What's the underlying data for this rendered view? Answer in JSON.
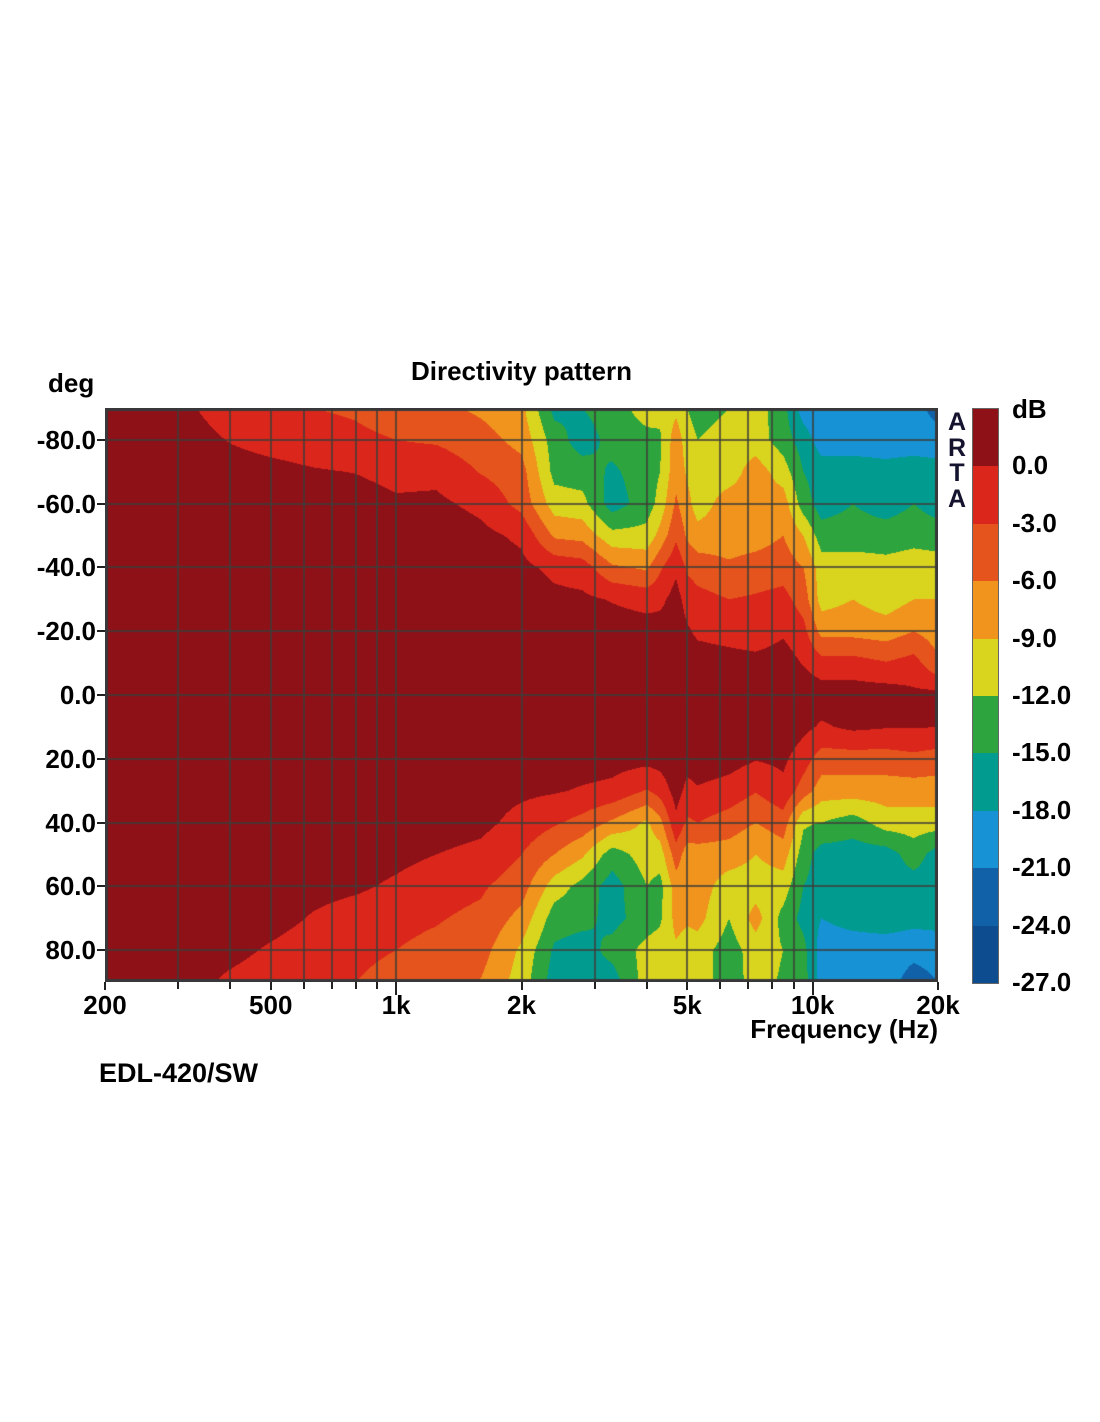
{
  "title": "Directivity pattern",
  "y_axis": {
    "unit_label": "deg",
    "ticks": [
      {
        "angle": -80,
        "label": "-80.0"
      },
      {
        "angle": -60,
        "label": "-60.0"
      },
      {
        "angle": -40,
        "label": "-40.0"
      },
      {
        "angle": -20,
        "label": "-20.0"
      },
      {
        "angle": 0,
        "label": "0.0"
      },
      {
        "angle": 20,
        "label": "20.0"
      },
      {
        "angle": 40,
        "label": "40.0"
      },
      {
        "angle": 60,
        "label": "60.0"
      },
      {
        "angle": 80,
        "label": "80.0"
      }
    ]
  },
  "x_axis": {
    "label": "Frequency (Hz)",
    "major_ticks": [
      {
        "hz": 200,
        "label": "200"
      },
      {
        "hz": 500,
        "label": "500"
      },
      {
        "hz": 1000,
        "label": "1k"
      },
      {
        "hz": 2000,
        "label": "2k"
      },
      {
        "hz": 5000,
        "label": "5k"
      },
      {
        "hz": 10000,
        "label": "10k"
      },
      {
        "hz": 20000,
        "label": "20k"
      }
    ],
    "minor_ticks_hz": [
      300,
      400,
      600,
      700,
      800,
      900,
      3000,
      4000,
      6000,
      7000,
      8000,
      9000
    ]
  },
  "watermark": {
    "text": "ARTA"
  },
  "footer_label": "EDL-420/SW",
  "colorbar": {
    "title": "dB",
    "boundary_labels": [
      "0.0",
      "-3.0",
      "-6.0",
      "-9.0",
      "-12.0",
      "-15.0",
      "-18.0",
      "-21.0",
      "-24.0",
      "-27.0"
    ]
  },
  "grid": {
    "v_lines_hz": [
      300,
      400,
      500,
      600,
      700,
      800,
      900,
      1000,
      2000,
      3000,
      4000,
      5000,
      6000,
      7000,
      8000,
      9000,
      10000
    ],
    "h_lines_deg": [
      -80,
      -60,
      -40,
      -20,
      0,
      20,
      40,
      60,
      80
    ],
    "line_color": "rgba(62,62,56,0.78)",
    "border_color": "#38383a"
  },
  "chart_data": {
    "type": "heatmap",
    "title": "Directivity pattern",
    "xlabel": "Frequency (Hz)",
    "ylabel": "deg",
    "x_scale": "log",
    "x_range_hz": [
      200,
      20000
    ],
    "y_range_deg": [
      -90,
      90
    ],
    "z_unit": "dB",
    "band_edges_db": [
      0,
      -3,
      -6,
      -9,
      -12,
      -15,
      -18,
      -21,
      -24,
      -27
    ],
    "palette": [
      "#8e1118",
      "#db261b",
      "#e5541c",
      "#f0941e",
      "#d9d41e",
      "#2da43e",
      "#029b90",
      "#1793d5",
      "#1161a8",
      "#0d4d8f"
    ],
    "legend_position": "right",
    "angles_deg": [
      -90,
      -80,
      -70,
      -60,
      -50,
      -40,
      -30,
      -20,
      -10,
      0,
      10,
      20,
      30,
      40,
      50,
      60,
      70,
      80,
      90
    ],
    "frequencies_hz": [
      200,
      250,
      315,
      400,
      500,
      630,
      800,
      1000,
      1250,
      1600,
      2000,
      2400,
      2800,
      3300,
      4000,
      4300,
      4700,
      5000,
      5300,
      6300,
      7300,
      8500,
      9500,
      10500,
      12500,
      15000,
      17500,
      20000
    ],
    "values_db": [
      [
        2,
        2,
        2,
        2,
        2,
        2,
        2,
        2,
        2,
        2,
        2,
        2,
        2,
        2,
        2,
        2,
        2,
        2,
        2
      ],
      [
        2,
        2,
        2,
        2,
        2,
        2,
        2,
        2,
        2,
        2,
        2,
        2,
        2,
        2,
        2,
        2,
        2,
        2,
        2
      ],
      [
        0.5,
        1.5,
        2,
        2,
        2,
        2,
        2,
        2,
        2,
        2,
        2,
        2,
        2,
        2,
        2,
        2,
        2,
        2,
        1.5
      ],
      [
        -1.8,
        -0.2,
        1.5,
        2,
        2,
        2,
        2,
        2,
        2,
        2,
        2,
        2,
        2,
        2,
        2,
        2,
        2,
        1.2,
        -0.8
      ],
      [
        -2.5,
        -1.2,
        1,
        2,
        2,
        2,
        2,
        2,
        2,
        2,
        2,
        2,
        2,
        2,
        2,
        2,
        1.5,
        -0.5,
        -2.2
      ],
      [
        -3,
        -1.8,
        0.3,
        1.8,
        2,
        2,
        2,
        2,
        2,
        2,
        2,
        2,
        2,
        2,
        2,
        1.2,
        -0.3,
        -2,
        -2.8
      ],
      [
        -3.4,
        -2.4,
        -0.1,
        1.5,
        2,
        2,
        2,
        2,
        2,
        2,
        2,
        2,
        2,
        2,
        1.8,
        0.6,
        -1.6,
        -2.2,
        -3
      ],
      [
        -4.4,
        -3,
        -1,
        0.5,
        2,
        2,
        2,
        2,
        2,
        2,
        2,
        2,
        2,
        1.6,
        1,
        -0.6,
        -2.4,
        -3,
        -4.2
      ],
      [
        -5.2,
        -3.4,
        -0.8,
        0.6,
        2,
        2,
        2,
        2,
        2,
        2,
        2,
        2,
        1.8,
        1.4,
        0,
        -2,
        -2.8,
        -3.6,
        -4.6
      ],
      [
        -6.6,
        -4.8,
        -3.2,
        -0.8,
        0.8,
        2,
        2,
        2,
        2,
        2,
        2,
        2,
        1.2,
        0.8,
        -0.8,
        -2.6,
        -3.6,
        -4.8,
        -6.2
      ],
      [
        -8.2,
        -7,
        -4.8,
        -4,
        -0.6,
        0.8,
        2,
        2,
        2,
        2,
        2,
        2,
        0.6,
        -1,
        -3,
        -4.6,
        -7,
        -9.6,
        -10.4
      ],
      [
        -16,
        -13.5,
        -13,
        -10.5,
        -6.5,
        -0.8,
        0.8,
        1.8,
        2,
        2,
        2,
        1.8,
        0.3,
        -2.6,
        -6,
        -10.5,
        -13.5,
        -15.5,
        -16.5
      ],
      [
        -15,
        -16.5,
        -13.5,
        -11,
        -7,
        -1.5,
        0.6,
        1.8,
        2,
        2,
        2,
        1.5,
        -0.3,
        -4,
        -8.5,
        -13,
        -14,
        -16.5,
        -15.5
      ],
      [
        -13.5,
        -14,
        -15.5,
        -16.5,
        -11,
        -5.5,
        -0.2,
        1.5,
        2,
        2,
        2,
        1.2,
        -0.8,
        -6.5,
        -13.5,
        -16.5,
        -16,
        -14,
        -16.5
      ],
      [
        -10.5,
        -13,
        -13.5,
        -13.5,
        -11,
        -6.5,
        -1,
        1.2,
        2,
        2,
        2,
        1,
        -3.2,
        -9.5,
        -10.5,
        -12,
        -13.5,
        -11,
        -10.5
      ],
      [
        -11,
        -12.5,
        -12,
        -11,
        -8,
        -3.5,
        -0.8,
        1.4,
        2,
        2,
        2,
        1.2,
        -1.8,
        -7,
        -10.5,
        -13,
        -12.5,
        -10.5,
        -10.5
      ],
      [
        -9.8,
        -7.2,
        -7,
        -5.5,
        -3.6,
        -0.6,
        1.2,
        1.8,
        2,
        2,
        2,
        1.8,
        1.2,
        -0.6,
        -4.4,
        -7.5,
        -8,
        -9.5,
        -10.5
      ],
      [
        -12,
        -10.5,
        -9.5,
        -8,
        -6.5,
        -3.5,
        -1.2,
        0.4,
        1.8,
        2,
        2,
        1,
        -0.8,
        -3.5,
        -7.5,
        -8,
        -8.5,
        -10.5,
        -10.5
      ],
      [
        -13.5,
        -12,
        -10.5,
        -10.5,
        -7.8,
        -4.4,
        -2,
        -0.6,
        1.5,
        2,
        2,
        1.6,
        -0.3,
        -3,
        -7.5,
        -7.5,
        -8,
        -10.5,
        -10.5
      ],
      [
        -12,
        -10.5,
        -10.5,
        -7.5,
        -7.5,
        -5.5,
        -3,
        -1.2,
        1.2,
        2,
        2,
        1.2,
        -1.2,
        -4.4,
        -7.5,
        -10.5,
        -12,
        -13.5,
        -13.5
      ],
      [
        -10.5,
        -10.5,
        -7.5,
        -7.5,
        -7.2,
        -4.8,
        -2.6,
        -1.8,
        1,
        2,
        2,
        0.2,
        -2.8,
        -6,
        -9,
        -10.5,
        -7.8,
        -10.5,
        -10.8
      ],
      [
        -14,
        -13.5,
        -10.5,
        -7.5,
        -6,
        -4.4,
        -2,
        -0.4,
        1.4,
        2,
        2,
        0.6,
        -0.8,
        -4.4,
        -7.5,
        -10.5,
        -13,
        -12,
        -12.4
      ],
      [
        -19.5,
        -16.5,
        -15,
        -13.5,
        -9,
        -6,
        -4.4,
        -2,
        -0.2,
        2,
        0.8,
        -1.6,
        -4.4,
        -11.5,
        -13.5,
        -15,
        -16,
        -14,
        -13.5
      ],
      [
        -20,
        -19.5,
        -16.5,
        -16.5,
        -13.5,
        -10.5,
        -10.2,
        -7,
        -1.8,
        1.6,
        -0.4,
        -4.4,
        -7.5,
        -12,
        -16.5,
        -16.5,
        -18,
        -19.5,
        -19.5
      ],
      [
        -19.5,
        -19.5,
        -16.5,
        -15,
        -13.5,
        -10.5,
        -9,
        -7,
        -1.8,
        1.6,
        0.6,
        -4.4,
        -7.5,
        -13.5,
        -16.5,
        -16.5,
        -17,
        -19.5,
        -19.5
      ],
      [
        -19.5,
        -19.5,
        -17,
        -16.5,
        -13.5,
        -11,
        -10.5,
        -7.5,
        -2.8,
        1.6,
        0.2,
        -4.4,
        -7.5,
        -10.5,
        -16.5,
        -16.5,
        -16.5,
        -19.5,
        -19.5
      ],
      [
        -19.5,
        -19.5,
        -16.5,
        -15,
        -13,
        -10.5,
        -9,
        -6,
        -1.8,
        0.6,
        0.2,
        -3.8,
        -7.5,
        -10.5,
        -13.5,
        -16.5,
        -17,
        -20,
        -22.5
      ],
      [
        -22.5,
        -19.5,
        -17,
        -16.5,
        -13.5,
        -10.5,
        -9,
        -7.5,
        -5.5,
        1,
        0,
        -4.4,
        -7.5,
        -10.5,
        -16.5,
        -16.5,
        -17,
        -19.5,
        -21
      ]
    ]
  }
}
